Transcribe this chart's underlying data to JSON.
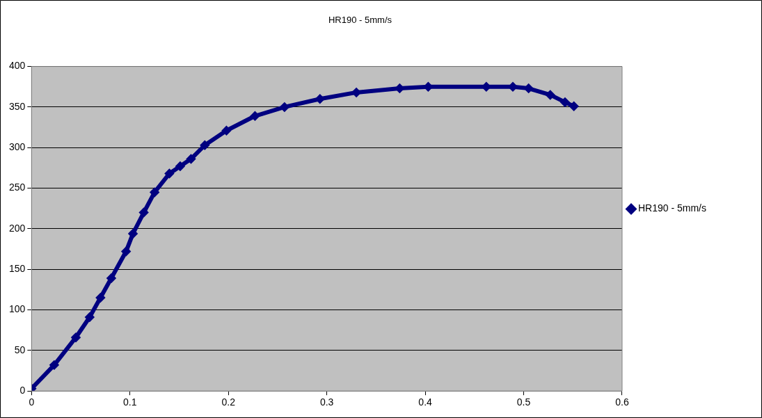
{
  "chart_data": {
    "type": "line",
    "title": "HR190 - 5mm/s",
    "series": [
      {
        "name": "HR190 - 5mm/s",
        "color": "#000080",
        "x": [
          0,
          0.023,
          0.045,
          0.059,
          0.07,
          0.081,
          0.096,
          0.103,
          0.114,
          0.125,
          0.14,
          0.151,
          0.162,
          0.176,
          0.198,
          0.227,
          0.257,
          0.293,
          0.33,
          0.374,
          0.403,
          0.462,
          0.489,
          0.505,
          0.527,
          0.542,
          0.551
        ],
        "values": [
          3,
          32,
          66,
          91,
          115,
          139,
          172,
          194,
          220,
          245,
          268,
          277,
          286,
          303,
          321,
          339,
          350,
          360,
          368,
          373,
          375,
          375,
          375,
          373,
          365,
          356,
          351
        ]
      }
    ],
    "xlim": [
      0,
      0.6
    ],
    "xticks": [
      0,
      0.1,
      0.2,
      0.3,
      0.4,
      0.5,
      0.6
    ],
    "ylim": [
      0,
      400
    ],
    "yticks": [
      0,
      50,
      100,
      150,
      200,
      250,
      300,
      350,
      400
    ],
    "grid": "y",
    "legend": "right",
    "marker": "diamond",
    "line_style": "solid"
  }
}
